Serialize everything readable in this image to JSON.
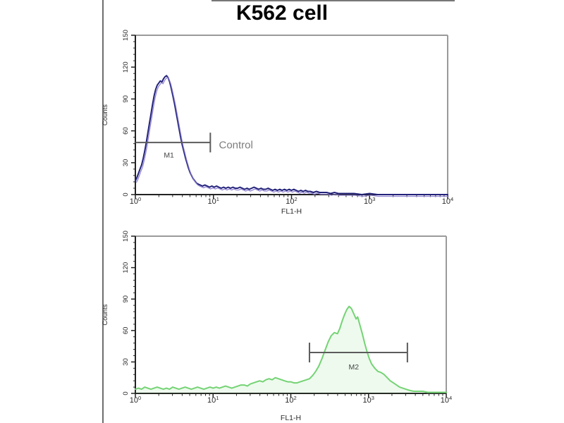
{
  "figure": {
    "title": "K562 cell"
  },
  "colors": {
    "control_curve": "#23237a",
    "control_inner": "#8678cc",
    "stained_curve": "#74d374",
    "marker": "#5c5c5c",
    "caption": "#7d7d7d",
    "axis": "#222222",
    "frame": "#9a9a9a",
    "tick_text": "#2b2b2b",
    "title_text": "#000000"
  },
  "chart_data": [
    {
      "name": "control-histogram",
      "type": "line",
      "subtype": "flow-cytometry-histogram",
      "xlabel": "FL1-H",
      "ylabel": "Counts",
      "x_scale": "log10",
      "xlim_decades": [
        0,
        4
      ],
      "x_tick_exponents": [
        0,
        1,
        2,
        3,
        4
      ],
      "y_ticks": [
        0,
        30,
        60,
        90,
        120,
        150
      ],
      "ylim": [
        0,
        150
      ],
      "grid": false,
      "curve_color": "#23237a",
      "curve_inner_color": "#8678cc",
      "fill_under": false,
      "marker": {
        "label": "M1",
        "from_decade": 0.0,
        "to_decade": 0.96,
        "at_count": 49,
        "end_ticks": [
          "right"
        ],
        "label_pos": [
          0.43,
          35
        ],
        "caption": "Control",
        "caption_pos": [
          1.07,
          46
        ]
      },
      "points": [
        [
          0.0,
          13
        ],
        [
          0.02,
          16
        ],
        [
          0.04,
          20
        ],
        [
          0.06,
          24
        ],
        [
          0.08,
          28
        ],
        [
          0.1,
          34
        ],
        [
          0.12,
          41
        ],
        [
          0.14,
          49
        ],
        [
          0.16,
          58
        ],
        [
          0.18,
          67
        ],
        [
          0.2,
          76
        ],
        [
          0.22,
          85
        ],
        [
          0.24,
          93
        ],
        [
          0.26,
          99
        ],
        [
          0.28,
          103
        ],
        [
          0.3,
          105
        ],
        [
          0.32,
          107
        ],
        [
          0.34,
          106
        ],
        [
          0.36,
          109
        ],
        [
          0.38,
          111
        ],
        [
          0.4,
          112
        ],
        [
          0.42,
          110
        ],
        [
          0.44,
          106
        ],
        [
          0.46,
          100
        ],
        [
          0.48,
          93
        ],
        [
          0.5,
          86
        ],
        [
          0.52,
          78
        ],
        [
          0.54,
          70
        ],
        [
          0.56,
          62
        ],
        [
          0.58,
          54
        ],
        [
          0.6,
          47
        ],
        [
          0.62,
          41
        ],
        [
          0.64,
          35
        ],
        [
          0.66,
          30
        ],
        [
          0.68,
          25
        ],
        [
          0.7,
          21
        ],
        [
          0.72,
          18
        ],
        [
          0.74,
          15
        ],
        [
          0.76,
          13
        ],
        [
          0.78,
          11
        ],
        [
          0.8,
          10
        ],
        [
          0.83,
          9
        ],
        [
          0.86,
          8
        ],
        [
          0.89,
          9
        ],
        [
          0.92,
          8
        ],
        [
          0.95,
          7
        ],
        [
          0.98,
          8
        ],
        [
          1.01,
          7
        ],
        [
          1.04,
          8
        ],
        [
          1.07,
          7
        ],
        [
          1.1,
          6
        ],
        [
          1.13,
          7
        ],
        [
          1.16,
          6
        ],
        [
          1.19,
          7
        ],
        [
          1.22,
          6
        ],
        [
          1.25,
          7
        ],
        [
          1.28,
          6
        ],
        [
          1.31,
          6
        ],
        [
          1.34,
          7
        ],
        [
          1.37,
          6
        ],
        [
          1.4,
          5
        ],
        [
          1.43,
          6
        ],
        [
          1.46,
          5
        ],
        [
          1.49,
          6
        ],
        [
          1.52,
          7
        ],
        [
          1.55,
          6
        ],
        [
          1.58,
          5
        ],
        [
          1.61,
          6
        ],
        [
          1.64,
          5
        ],
        [
          1.67,
          5
        ],
        [
          1.7,
          6
        ],
        [
          1.73,
          5
        ],
        [
          1.76,
          4
        ],
        [
          1.79,
          5
        ],
        [
          1.82,
          4
        ],
        [
          1.85,
          5
        ],
        [
          1.88,
          4
        ],
        [
          1.91,
          5
        ],
        [
          1.94,
          4
        ],
        [
          1.97,
          5
        ],
        [
          2.0,
          4
        ],
        [
          2.03,
          5
        ],
        [
          2.06,
          4
        ],
        [
          2.09,
          3
        ],
        [
          2.12,
          4
        ],
        [
          2.15,
          3
        ],
        [
          2.18,
          4
        ],
        [
          2.21,
          3
        ],
        [
          2.24,
          3
        ],
        [
          2.28,
          2
        ],
        [
          2.32,
          3
        ],
        [
          2.36,
          2
        ],
        [
          2.4,
          2
        ],
        [
          2.45,
          2
        ],
        [
          2.5,
          1
        ],
        [
          2.55,
          2
        ],
        [
          2.6,
          1
        ],
        [
          2.65,
          1
        ],
        [
          2.7,
          1
        ],
        [
          2.75,
          1
        ],
        [
          2.8,
          1
        ],
        [
          2.9,
          0
        ],
        [
          3.0,
          1
        ],
        [
          3.1,
          0
        ],
        [
          3.25,
          0
        ],
        [
          3.4,
          0
        ],
        [
          3.6,
          0
        ],
        [
          3.8,
          0
        ],
        [
          4.0,
          0
        ]
      ]
    },
    {
      "name": "stained-histogram",
      "type": "line",
      "subtype": "flow-cytometry-histogram",
      "xlabel": "FL1-H",
      "ylabel": "Counts",
      "x_scale": "log10",
      "xlim_decades": [
        0,
        4
      ],
      "x_tick_exponents": [
        0,
        1,
        2,
        3,
        4
      ],
      "y_ticks": [
        0,
        30,
        60,
        90,
        120,
        150
      ],
      "ylim": [
        0,
        150
      ],
      "grid": false,
      "curve_color": "#74d374",
      "curve_inner_color": null,
      "fill_under": true,
      "marker": {
        "label": "M2",
        "from_decade": 2.24,
        "to_decade": 3.5,
        "at_count": 39,
        "end_ticks": [
          "left",
          "right"
        ],
        "label_pos": [
          2.81,
          23
        ],
        "caption": null,
        "caption_pos": null
      },
      "points": [
        [
          0.0,
          4
        ],
        [
          0.04,
          5
        ],
        [
          0.08,
          4
        ],
        [
          0.12,
          6
        ],
        [
          0.16,
          5
        ],
        [
          0.2,
          4
        ],
        [
          0.24,
          5
        ],
        [
          0.28,
          6
        ],
        [
          0.32,
          5
        ],
        [
          0.36,
          4
        ],
        [
          0.4,
          5
        ],
        [
          0.44,
          4
        ],
        [
          0.48,
          6
        ],
        [
          0.52,
          5
        ],
        [
          0.56,
          4
        ],
        [
          0.6,
          5
        ],
        [
          0.64,
          6
        ],
        [
          0.68,
          5
        ],
        [
          0.72,
          4
        ],
        [
          0.76,
          5
        ],
        [
          0.8,
          6
        ],
        [
          0.84,
          5
        ],
        [
          0.88,
          4
        ],
        [
          0.92,
          5
        ],
        [
          0.96,
          6
        ],
        [
          1.0,
          5
        ],
        [
          1.04,
          6
        ],
        [
          1.08,
          5
        ],
        [
          1.12,
          6
        ],
        [
          1.16,
          7
        ],
        [
          1.2,
          6
        ],
        [
          1.24,
          5
        ],
        [
          1.28,
          6
        ],
        [
          1.32,
          7
        ],
        [
          1.36,
          8
        ],
        [
          1.4,
          8
        ],
        [
          1.44,
          7
        ],
        [
          1.48,
          9
        ],
        [
          1.52,
          10
        ],
        [
          1.56,
          11
        ],
        [
          1.6,
          12
        ],
        [
          1.64,
          11
        ],
        [
          1.68,
          13
        ],
        [
          1.72,
          14
        ],
        [
          1.76,
          13
        ],
        [
          1.8,
          15
        ],
        [
          1.84,
          14
        ],
        [
          1.88,
          13
        ],
        [
          1.92,
          12
        ],
        [
          1.96,
          11
        ],
        [
          2.0,
          11
        ],
        [
          2.04,
          10
        ],
        [
          2.08,
          10
        ],
        [
          2.12,
          11
        ],
        [
          2.16,
          12
        ],
        [
          2.2,
          13
        ],
        [
          2.24,
          14
        ],
        [
          2.28,
          17
        ],
        [
          2.32,
          21
        ],
        [
          2.36,
          26
        ],
        [
          2.4,
          33
        ],
        [
          2.44,
          41
        ],
        [
          2.48,
          49
        ],
        [
          2.52,
          55
        ],
        [
          2.56,
          58
        ],
        [
          2.6,
          57
        ],
        [
          2.63,
          62
        ],
        [
          2.66,
          69
        ],
        [
          2.69,
          75
        ],
        [
          2.72,
          80
        ],
        [
          2.75,
          83
        ],
        [
          2.78,
          81
        ],
        [
          2.81,
          76
        ],
        [
          2.84,
          71
        ],
        [
          2.86,
          73
        ],
        [
          2.89,
          65
        ],
        [
          2.92,
          57
        ],
        [
          2.95,
          48
        ],
        [
          2.98,
          40
        ],
        [
          3.01,
          33
        ],
        [
          3.04,
          28
        ],
        [
          3.08,
          24
        ],
        [
          3.12,
          21
        ],
        [
          3.16,
          20
        ],
        [
          3.2,
          18
        ],
        [
          3.24,
          15
        ],
        [
          3.28,
          12
        ],
        [
          3.32,
          10
        ],
        [
          3.36,
          8
        ],
        [
          3.4,
          6
        ],
        [
          3.44,
          5
        ],
        [
          3.48,
          4
        ],
        [
          3.52,
          3
        ],
        [
          3.58,
          2
        ],
        [
          3.64,
          2
        ],
        [
          3.7,
          2
        ],
        [
          3.76,
          1
        ],
        [
          3.82,
          1
        ],
        [
          3.9,
          1
        ],
        [
          4.0,
          1
        ]
      ]
    }
  ]
}
